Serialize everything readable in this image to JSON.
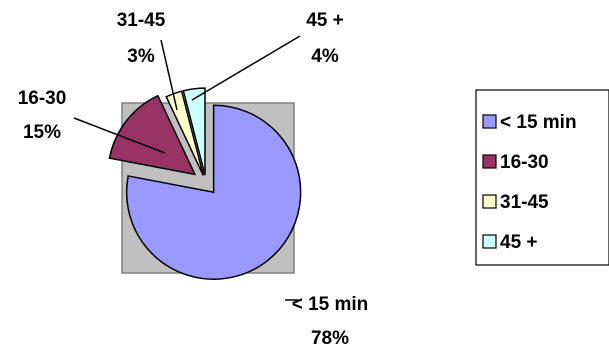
{
  "chart_data": {
    "type": "pie",
    "exploded": true,
    "plot_background": "#c0c0c0",
    "legend_position": "right",
    "slices": [
      {
        "label": "< 15 min",
        "value": 78,
        "percent_label": "78%",
        "color": "#9999ff"
      },
      {
        "label": "16-30",
        "value": 15,
        "percent_label": "15%",
        "color": "#993366"
      },
      {
        "label": "31-45",
        "value": 3,
        "percent_label": "3%",
        "color": "#ffffcc"
      },
      {
        "label": "45 +",
        "value": 4,
        "percent_label": "4%",
        "color": "#ccffff"
      }
    ]
  }
}
